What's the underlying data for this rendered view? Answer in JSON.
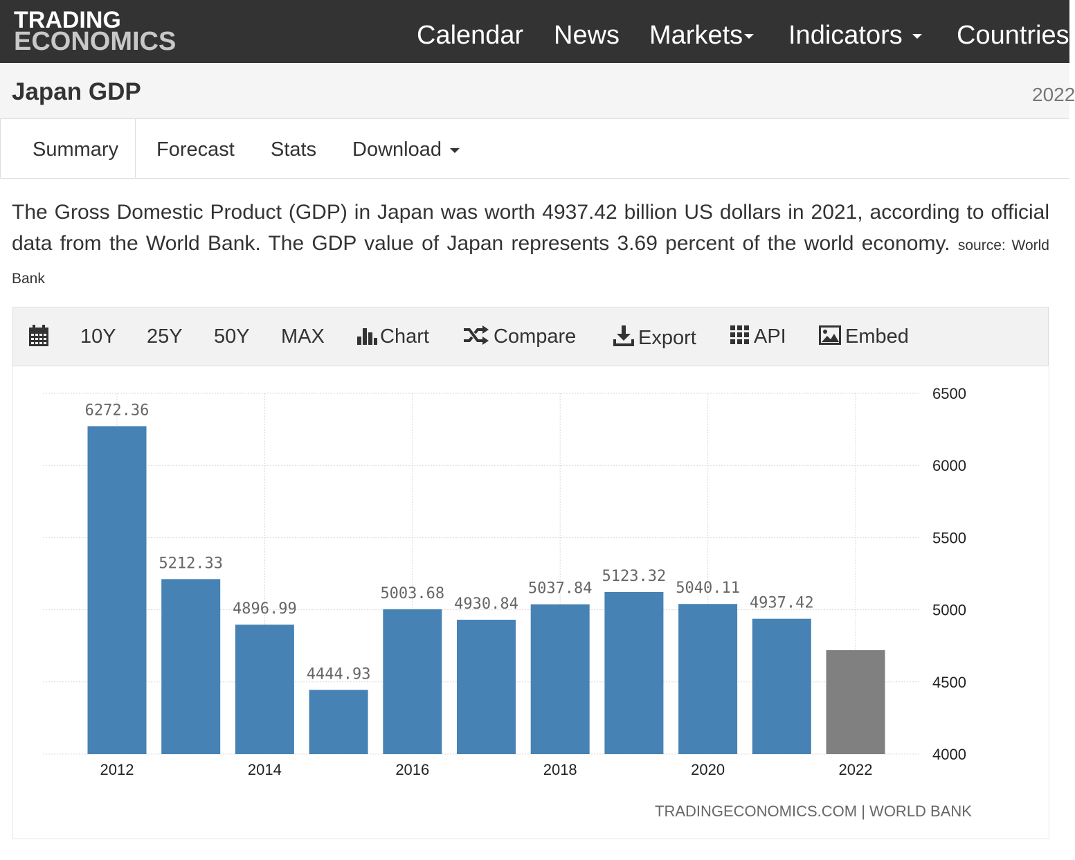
{
  "header": {
    "logo_line1": "TRADING",
    "logo_line2": "ECONOMICS",
    "nav": [
      {
        "label": "Calendar",
        "dropdown": false
      },
      {
        "label": "News",
        "dropdown": false
      },
      {
        "label": "Markets",
        "dropdown": true
      },
      {
        "label": "Indicators",
        "dropdown": true
      },
      {
        "label": "Countries",
        "dropdown": false
      }
    ]
  },
  "title": {
    "text": "Japan GDP",
    "date": "2022"
  },
  "tabs": [
    {
      "label": "Summary",
      "active": true
    },
    {
      "label": "Forecast",
      "active": false
    },
    {
      "label": "Stats",
      "active": false
    },
    {
      "label": "Download",
      "active": false,
      "dropdown": true
    }
  ],
  "description": {
    "text": "The Gross Domestic Product (GDP) in Japan was worth 4937.42 billion US dollars in 2021, according to official data from the World Bank. The GDP value of Japan represents 3.69 percent of the world economy.",
    "source": "source: World Bank"
  },
  "toolbar": {
    "calendar_icon": "calendar-icon",
    "ranges": [
      "10Y",
      "25Y",
      "50Y",
      "MAX"
    ],
    "chart_label": "Chart",
    "compare_label": "Compare",
    "export_label": "Export",
    "api_label": "API",
    "embed_label": "Embed"
  },
  "chart_data": {
    "type": "bar",
    "x": [
      2012,
      2013,
      2014,
      2015,
      2016,
      2017,
      2018,
      2019,
      2020,
      2021,
      2022
    ],
    "values": [
      6272.36,
      5212.33,
      4896.99,
      4444.93,
      5003.68,
      4930.84,
      5037.84,
      5123.32,
      5040.11,
      4937.42,
      4720
    ],
    "data_labels": [
      "6272.36",
      "5212.33",
      "4896.99",
      "4444.93",
      "5003.68",
      "4930.84",
      "5037.84",
      "5123.32",
      "5040.11",
      "4937.42",
      ""
    ],
    "x_tick_labels": [
      "2012",
      "2014",
      "2016",
      "2018",
      "2020",
      "2022"
    ],
    "y_tick_labels": [
      "6500",
      "6000",
      "5500",
      "5000",
      "4500",
      "4000"
    ],
    "ylim": [
      4000,
      6500
    ],
    "y_axis_side": "right",
    "grid": true,
    "colors": {
      "actual": "#4682b4",
      "forecast": "#808080"
    },
    "forecast_from": 2022,
    "source_label": "TRADINGECONOMICS.COM  |  WORLD BANK"
  }
}
